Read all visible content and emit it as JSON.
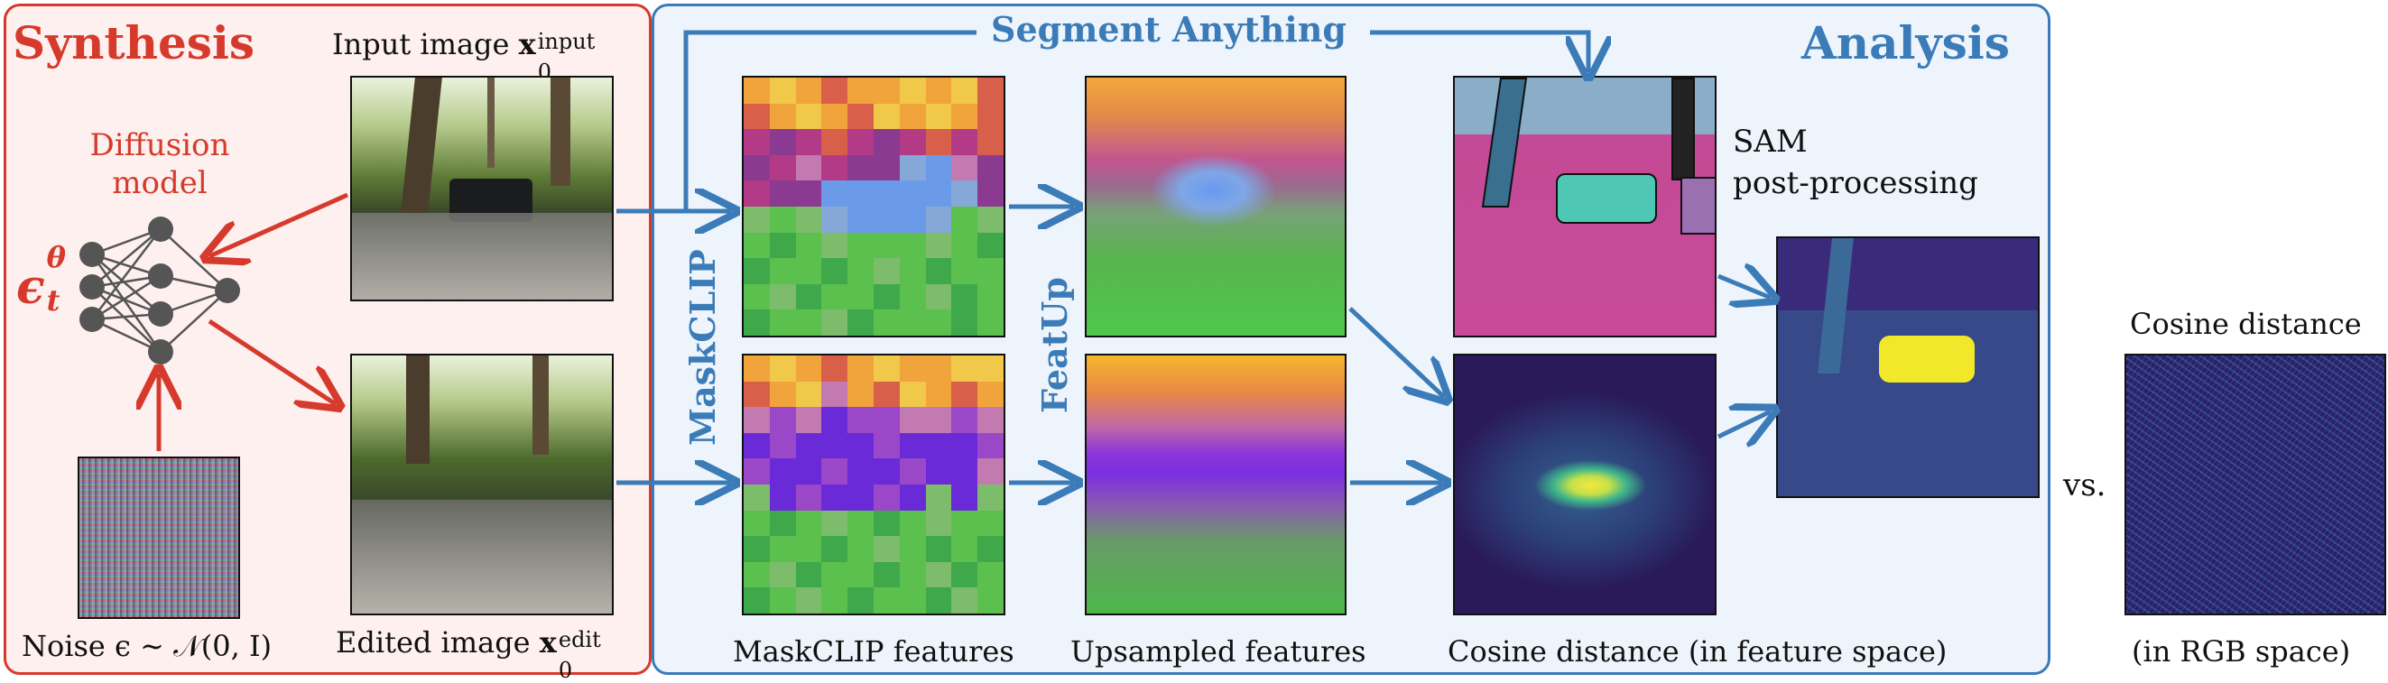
{
  "synthesis": {
    "title": "Synthesis",
    "model_label_line1": "Diffusion",
    "model_label_line2": "model",
    "eps_symbol": "ϵ",
    "eps_sup": "θ",
    "eps_sub": "t",
    "input_label": "Input image ",
    "input_x": "x",
    "input_sup": "input",
    "input_sub": "0",
    "edited_label": "Edited image ",
    "edited_x": "x",
    "edited_sup": "edit",
    "edited_sub": "0",
    "noise_label": "Noise ϵ ∼ 𝒩(0, I)"
  },
  "analysis": {
    "title": "Analysis",
    "sam_top": "Segment Anything",
    "maskclip_vertical": "MaskCLIP",
    "featup_vertical": "FeatUp",
    "sam_line1": "SAM",
    "sam_line2": "post-processing",
    "maskclip_features": "MaskCLIP features",
    "upsampled_features": "Upsampled features",
    "cosine_feature": "Cosine distance (in feature space)"
  },
  "comparison": {
    "vs": "vs.",
    "title": "Cosine distance",
    "subtitle": "(in RGB space)"
  },
  "colors": {
    "red": "#d63a2c",
    "blue": "#3b7bb8",
    "node": "#555555"
  },
  "icons": {
    "network": "neural-network-icon"
  }
}
